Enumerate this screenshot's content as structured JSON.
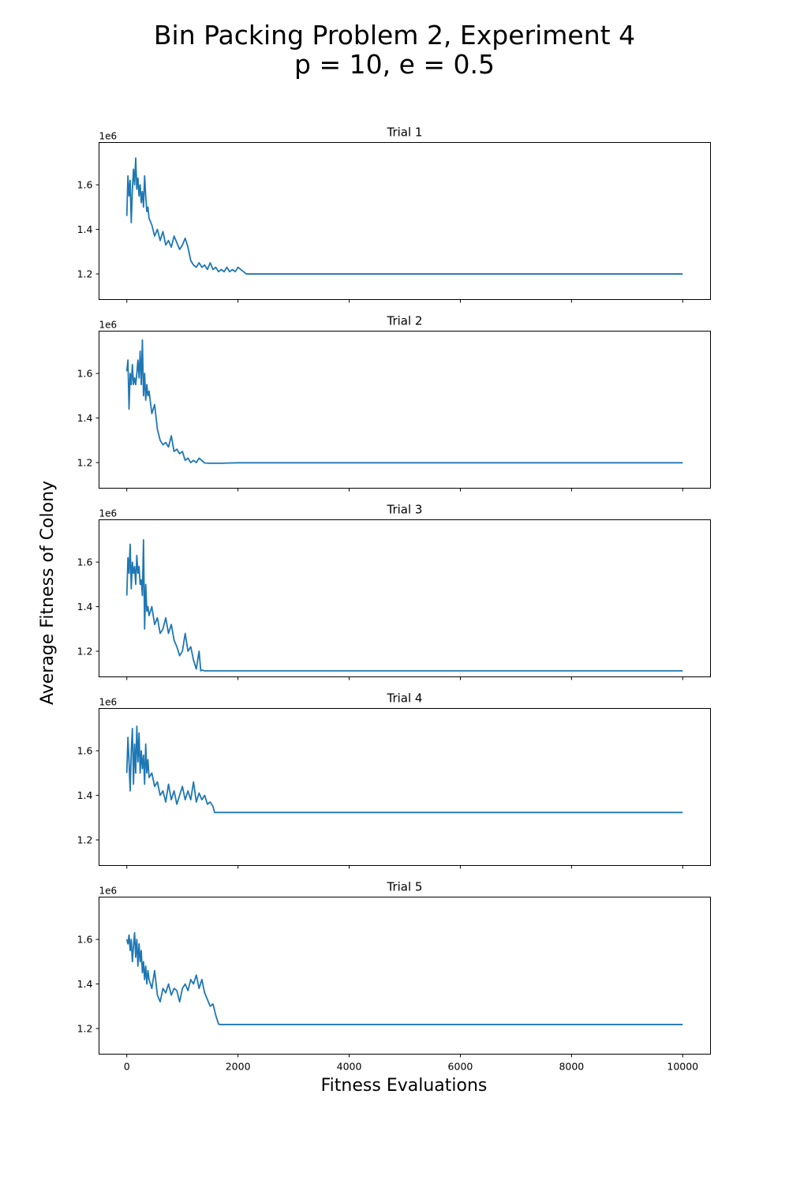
{
  "figure": {
    "title_line1": "Bin Packing Problem 2, Experiment 4",
    "title_line2": "p = 10, e = 0.5",
    "xlabel": "Fitness Evaluations",
    "ylabel": "Average Fitness of Colony",
    "line_color": "#1f77b4"
  },
  "chart_data": [
    {
      "type": "line",
      "title": "Trial 1",
      "y_offset_label": "1e6",
      "xlim": [
        -500,
        10500
      ],
      "ylim": [
        1.085,
        1.79
      ],
      "x_ticks": [
        0,
        2000,
        4000,
        6000,
        8000,
        10000
      ],
      "y_ticks": [
        1.2,
        1.4,
        1.6
      ],
      "y_tick_labels": [
        "1.2",
        "1.4",
        "1.6"
      ],
      "series": [
        {
          "x": [
            0,
            20,
            40,
            60,
            80,
            100,
            120,
            140,
            160,
            180,
            200,
            220,
            240,
            260,
            280,
            300,
            320,
            340,
            360,
            380,
            400,
            450,
            500,
            550,
            600,
            650,
            700,
            750,
            800,
            850,
            900,
            950,
            1000,
            1050,
            1100,
            1150,
            1200,
            1250,
            1300,
            1350,
            1400,
            1450,
            1500,
            1550,
            1600,
            1650,
            1700,
            1750,
            1800,
            1850,
            1900,
            1950,
            2000,
            2050,
            2100,
            2150,
            2200,
            2500,
            3000,
            4000,
            5000,
            6000,
            7000,
            8000,
            9000,
            10000
          ],
          "y": [
            1.46,
            1.64,
            1.55,
            1.62,
            1.43,
            1.58,
            1.67,
            1.6,
            1.72,
            1.58,
            1.63,
            1.55,
            1.6,
            1.52,
            1.57,
            1.5,
            1.64,
            1.55,
            1.48,
            1.5,
            1.45,
            1.42,
            1.37,
            1.4,
            1.35,
            1.39,
            1.33,
            1.35,
            1.32,
            1.37,
            1.34,
            1.31,
            1.33,
            1.36,
            1.32,
            1.26,
            1.24,
            1.23,
            1.25,
            1.23,
            1.24,
            1.22,
            1.25,
            1.22,
            1.23,
            1.21,
            1.22,
            1.21,
            1.23,
            1.21,
            1.22,
            1.21,
            1.23,
            1.22,
            1.21,
            1.2,
            1.2,
            1.2,
            1.2,
            1.2,
            1.2,
            1.2,
            1.2,
            1.2,
            1.2,
            1.2
          ]
        }
      ]
    },
    {
      "type": "line",
      "title": "Trial 2",
      "y_offset_label": "1e6",
      "xlim": [
        -500,
        10500
      ],
      "ylim": [
        1.085,
        1.79
      ],
      "x_ticks": [
        0,
        2000,
        4000,
        6000,
        8000,
        10000
      ],
      "y_ticks": [
        1.2,
        1.4,
        1.6
      ],
      "y_tick_labels": [
        "1.2",
        "1.4",
        "1.6"
      ],
      "series": [
        {
          "x": [
            0,
            20,
            40,
            60,
            80,
            100,
            120,
            140,
            160,
            180,
            200,
            220,
            240,
            260,
            280,
            300,
            320,
            340,
            360,
            380,
            400,
            450,
            500,
            550,
            600,
            650,
            700,
            750,
            800,
            850,
            900,
            950,
            1000,
            1050,
            1100,
            1150,
            1200,
            1250,
            1300,
            1400,
            1500,
            1600,
            1700,
            1800,
            2000,
            3000,
            4000,
            5000,
            6000,
            7000,
            8000,
            9000,
            10000
          ],
          "y": [
            1.61,
            1.66,
            1.44,
            1.6,
            1.55,
            1.64,
            1.55,
            1.58,
            1.55,
            1.6,
            1.66,
            1.58,
            1.7,
            1.55,
            1.75,
            1.5,
            1.6,
            1.48,
            1.55,
            1.5,
            1.52,
            1.42,
            1.46,
            1.35,
            1.3,
            1.28,
            1.29,
            1.27,
            1.32,
            1.25,
            1.26,
            1.24,
            1.25,
            1.21,
            1.22,
            1.2,
            1.21,
            1.2,
            1.22,
            1.198,
            1.197,
            1.197,
            1.197,
            1.198,
            1.199,
            1.199,
            1.199,
            1.199,
            1.199,
            1.199,
            1.199,
            1.199,
            1.199
          ]
        }
      ]
    },
    {
      "type": "line",
      "title": "Trial 3",
      "y_offset_label": "1e6",
      "xlim": [
        -500,
        10500
      ],
      "ylim": [
        1.085,
        1.79
      ],
      "x_ticks": [
        0,
        2000,
        4000,
        6000,
        8000,
        10000
      ],
      "y_ticks": [
        1.2,
        1.4,
        1.6
      ],
      "y_tick_labels": [
        "1.2",
        "1.4",
        "1.6"
      ],
      "series": [
        {
          "x": [
            0,
            20,
            40,
            60,
            80,
            100,
            120,
            140,
            160,
            180,
            200,
            220,
            240,
            260,
            280,
            300,
            320,
            340,
            360,
            380,
            400,
            450,
            500,
            550,
            600,
            650,
            700,
            750,
            800,
            850,
            900,
            950,
            1000,
            1050,
            1100,
            1150,
            1200,
            1250,
            1300,
            1330,
            1350,
            1400,
            2000,
            3000,
            4000,
            5000,
            6000,
            7000,
            8000,
            9000,
            10000
          ],
          "y": [
            1.45,
            1.62,
            1.55,
            1.68,
            1.48,
            1.6,
            1.55,
            1.58,
            1.5,
            1.63,
            1.55,
            1.58,
            1.5,
            1.52,
            1.45,
            1.7,
            1.3,
            1.5,
            1.38,
            1.4,
            1.36,
            1.4,
            1.32,
            1.35,
            1.28,
            1.3,
            1.35,
            1.28,
            1.32,
            1.25,
            1.22,
            1.18,
            1.2,
            1.28,
            1.2,
            1.22,
            1.16,
            1.12,
            1.2,
            1.112,
            1.115,
            1.112,
            1.112,
            1.112,
            1.112,
            1.112,
            1.112,
            1.112,
            1.112,
            1.112,
            1.112
          ]
        }
      ]
    },
    {
      "type": "line",
      "title": "Trial 4",
      "y_offset_label": "1e6",
      "xlim": [
        -500,
        10500
      ],
      "ylim": [
        1.085,
        1.79
      ],
      "x_ticks": [
        0,
        2000,
        4000,
        6000,
        8000,
        10000
      ],
      "y_ticks": [
        1.2,
        1.4,
        1.6
      ],
      "y_tick_labels": [
        "1.2",
        "1.4",
        "1.6"
      ],
      "series": [
        {
          "x": [
            0,
            20,
            40,
            60,
            80,
            100,
            120,
            140,
            160,
            180,
            200,
            220,
            240,
            260,
            280,
            300,
            320,
            340,
            360,
            380,
            400,
            450,
            500,
            550,
            600,
            650,
            700,
            750,
            800,
            850,
            900,
            950,
            1000,
            1050,
            1100,
            1150,
            1200,
            1250,
            1300,
            1350,
            1400,
            1450,
            1500,
            1550,
            1580,
            1600,
            2000,
            3000,
            4000,
            5000,
            6000,
            7000,
            8000,
            9000,
            10000
          ],
          "y": [
            1.5,
            1.66,
            1.55,
            1.42,
            1.6,
            1.7,
            1.45,
            1.63,
            1.5,
            1.71,
            1.55,
            1.68,
            1.5,
            1.6,
            1.52,
            1.58,
            1.45,
            1.63,
            1.5,
            1.56,
            1.48,
            1.5,
            1.44,
            1.46,
            1.4,
            1.42,
            1.37,
            1.45,
            1.38,
            1.42,
            1.36,
            1.4,
            1.44,
            1.38,
            1.42,
            1.38,
            1.46,
            1.37,
            1.41,
            1.38,
            1.4,
            1.36,
            1.37,
            1.35,
            1.323,
            1.323,
            1.323,
            1.323,
            1.323,
            1.323,
            1.323,
            1.323,
            1.323,
            1.323,
            1.323
          ]
        }
      ]
    },
    {
      "type": "line",
      "title": "Trial 5",
      "y_offset_label": "1e6",
      "xlim": [
        -500,
        10500
      ],
      "ylim": [
        1.085,
        1.79
      ],
      "x_ticks": [
        0,
        2000,
        4000,
        6000,
        8000,
        10000
      ],
      "x_tick_labels": [
        "0",
        "2000",
        "4000",
        "6000",
        "8000",
        "10000"
      ],
      "y_ticks": [
        1.2,
        1.4,
        1.6
      ],
      "y_tick_labels": [
        "1.2",
        "1.4",
        "1.6"
      ],
      "series": [
        {
          "x": [
            0,
            20,
            40,
            60,
            80,
            100,
            120,
            140,
            160,
            180,
            200,
            220,
            240,
            260,
            280,
            300,
            320,
            340,
            360,
            380,
            400,
            450,
            500,
            550,
            600,
            650,
            700,
            750,
            800,
            850,
            900,
            950,
            1000,
            1050,
            1100,
            1150,
            1200,
            1250,
            1300,
            1350,
            1400,
            1450,
            1500,
            1550,
            1600,
            1650,
            1680,
            1700,
            2000,
            3000,
            4000,
            5000,
            6000,
            7000,
            8000,
            9000,
            10000
          ],
          "y": [
            1.6,
            1.58,
            1.62,
            1.55,
            1.6,
            1.5,
            1.57,
            1.63,
            1.52,
            1.6,
            1.48,
            1.58,
            1.5,
            1.55,
            1.45,
            1.5,
            1.42,
            1.48,
            1.4,
            1.46,
            1.42,
            1.38,
            1.46,
            1.35,
            1.32,
            1.38,
            1.36,
            1.4,
            1.35,
            1.38,
            1.37,
            1.32,
            1.38,
            1.4,
            1.37,
            1.42,
            1.4,
            1.44,
            1.38,
            1.42,
            1.36,
            1.33,
            1.3,
            1.31,
            1.26,
            1.22,
            1.218,
            1.218,
            1.218,
            1.218,
            1.218,
            1.218,
            1.218,
            1.218,
            1.218,
            1.218,
            1.218
          ]
        }
      ]
    }
  ]
}
